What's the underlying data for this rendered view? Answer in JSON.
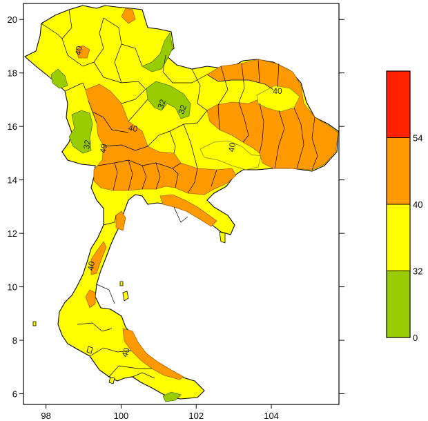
{
  "chart_data": {
    "type": "heatmap",
    "title": "",
    "xlabel": "",
    "ylabel": "",
    "xlim": [
      97.4,
      105.8
    ],
    "ylim": [
      5.6,
      20.6
    ],
    "x_ticks": [
      "98",
      "100",
      "102",
      "104"
    ],
    "y_ticks": [
      "6",
      "8",
      "10",
      "12",
      "14",
      "16",
      "18",
      "20"
    ],
    "grid": false,
    "legend_placement": "right",
    "colorbar": {
      "bins": [
        {
          "range": [
            0,
            32
          ],
          "color": "#99cc00"
        },
        {
          "range": [
            32,
            40
          ],
          "color": "#ffff00"
        },
        {
          "range": [
            40,
            54
          ],
          "color": "#ff9900"
        },
        {
          "range": [
            54,
            60
          ],
          "color": "#ff2200"
        }
      ],
      "tick_labels": [
        "0",
        "32",
        "40",
        "54"
      ]
    },
    "contour_labels": [
      "40",
      "40",
      "40",
      "40",
      "32",
      "32",
      "32",
      "40",
      "40",
      "40"
    ]
  },
  "colors": {
    "green": "#99cc00",
    "yellow": "#ffff00",
    "orange": "#ff9900",
    "red": "#ff2200",
    "land_fill": "#ffff00"
  }
}
